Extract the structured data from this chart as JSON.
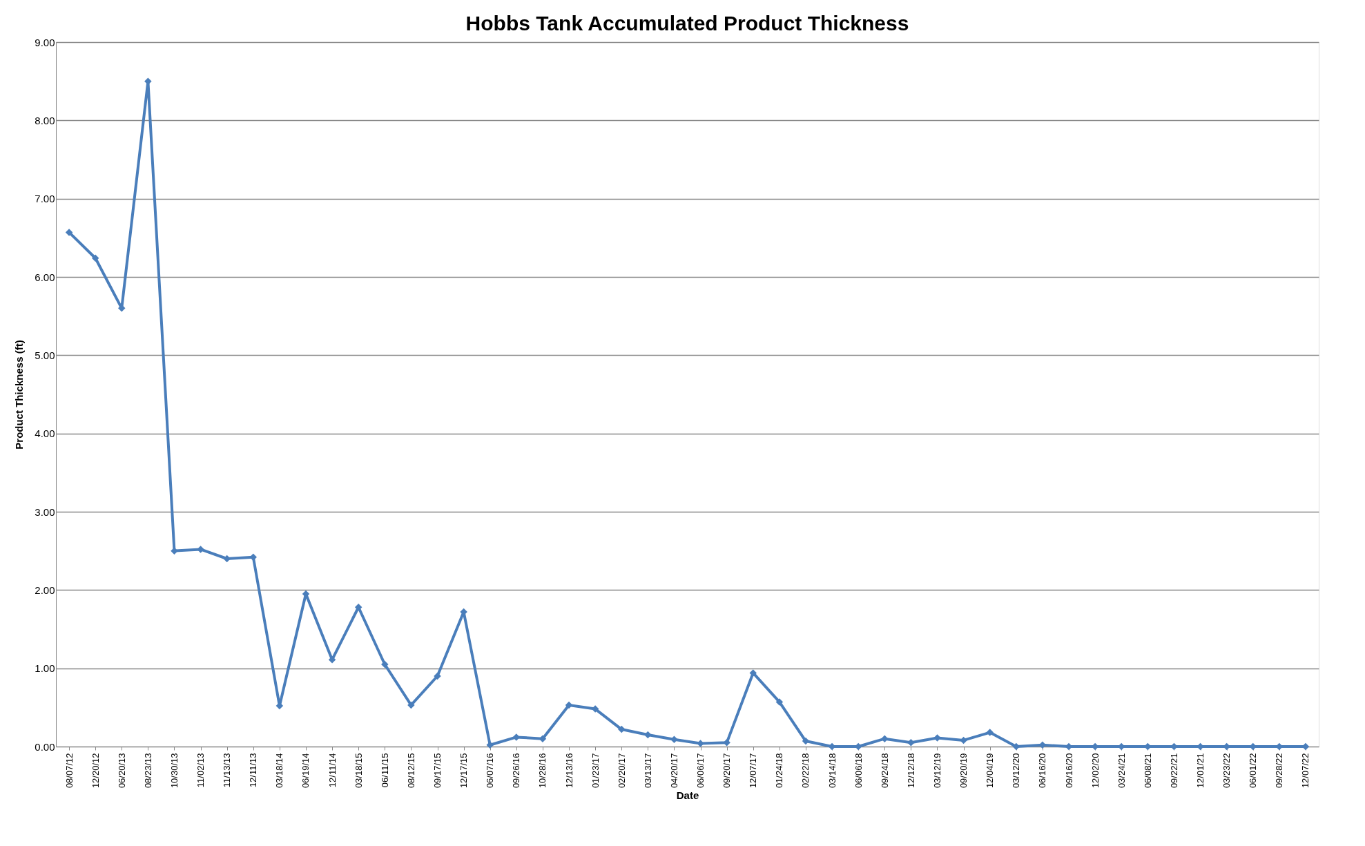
{
  "chart_data": {
    "type": "line",
    "title": "Hobbs Tank Accumulated Product Thickness",
    "xlabel": "Date",
    "ylabel": "Product Thickness (ft)",
    "categories": [
      "08/07/12",
      "12/20/12",
      "06/20/13",
      "08/23/13",
      "10/30/13",
      "11/02/13",
      "11/13/13",
      "12/11/13",
      "03/18/14",
      "06/19/14",
      "12/11/14",
      "03/18/15",
      "06/11/15",
      "08/12/15",
      "09/17/15",
      "12/17/15",
      "06/07/16",
      "09/26/16",
      "10/28/16",
      "12/13/16",
      "01/23/17",
      "02/20/17",
      "03/13/17",
      "04/20/17",
      "06/06/17",
      "09/20/17",
      "12/07/17",
      "01/24/18",
      "02/22/18",
      "03/14/18",
      "06/06/18",
      "09/24/18",
      "12/12/18",
      "03/12/19",
      "09/20/19",
      "12/04/19",
      "03/12/20",
      "06/16/20",
      "09/16/20",
      "12/02/20",
      "03/24/21",
      "06/08/21",
      "09/22/21",
      "12/01/21",
      "03/23/22",
      "06/01/22",
      "09/28/22",
      "12/07/22"
    ],
    "series": [
      {
        "color": "#4a7ebb",
        "values": [
          6.57,
          6.24,
          5.6,
          8.5,
          2.5,
          2.52,
          2.4,
          2.42,
          0.52,
          1.95,
          1.11,
          1.78,
          1.05,
          0.53,
          0.9,
          1.72,
          0.02,
          0.12,
          0.1,
          0.53,
          0.48,
          0.22,
          0.15,
          0.09,
          0.04,
          0.05,
          0.94,
          0.57,
          0.07,
          0.0,
          0.0,
          0.1,
          0.05,
          0.11,
          0.08,
          0.18,
          0.0,
          0.02,
          0.0,
          0.0,
          0.0,
          0.0,
          0.0,
          0.0,
          0.0,
          0.0,
          0.0,
          0.0
        ]
      }
    ],
    "ylim": [
      0,
      9
    ],
    "yticks": [
      {
        "value": 0,
        "label": "0.00"
      },
      {
        "value": 1,
        "label": "1.00"
      },
      {
        "value": 2,
        "label": "2.00"
      },
      {
        "value": 3,
        "label": "3.00"
      },
      {
        "value": 4,
        "label": "4.00"
      },
      {
        "value": 5,
        "label": "5.00"
      },
      {
        "value": 6,
        "label": "6.00"
      },
      {
        "value": 7,
        "label": "7.00"
      },
      {
        "value": 8,
        "label": "8.00"
      },
      {
        "value": 9,
        "label": "9.00"
      }
    ],
    "grid": "y",
    "marker": "diamond",
    "line_style": "solid"
  }
}
